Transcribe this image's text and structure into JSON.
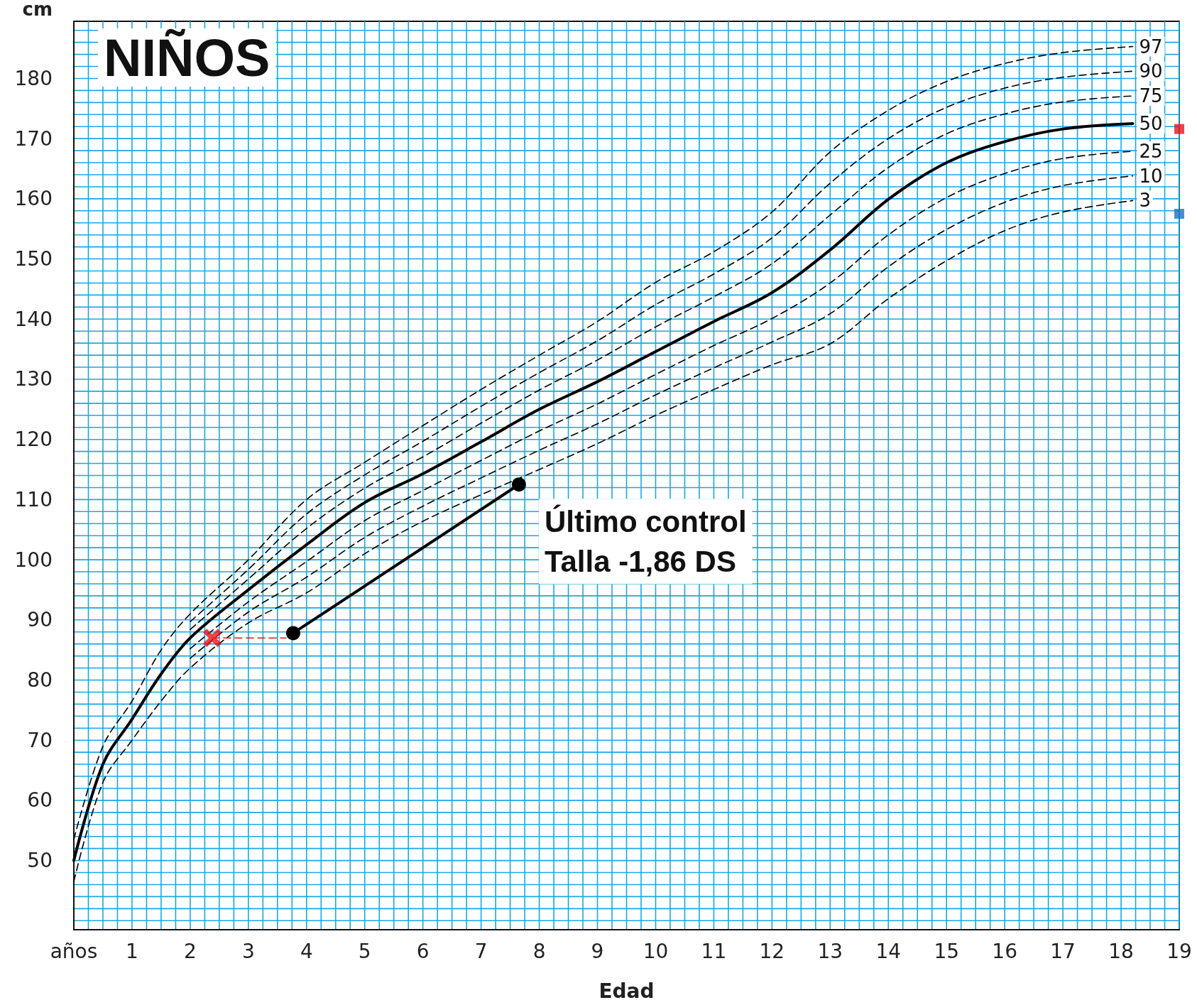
{
  "chart_data": {
    "type": "line",
    "title": "NIÑOS",
    "xlabel": "Edad",
    "ylabel": "cm",
    "x": [
      0,
      0.5,
      1,
      1.5,
      2,
      3,
      4,
      5,
      6,
      7,
      8,
      9,
      10,
      11,
      12,
      13,
      14,
      15,
      16,
      17,
      18.2
    ],
    "xlim": [
      0,
      19
    ],
    "ylim": [
      38.5,
      189.5
    ],
    "xticks": [
      {
        "value": 0,
        "label": "años"
      },
      1,
      2,
      3,
      4,
      5,
      6,
      7,
      8,
      9,
      10,
      11,
      12,
      13,
      14,
      15,
      16,
      17,
      18,
      19
    ],
    "yticks": [
      50,
      60,
      70,
      80,
      90,
      100,
      110,
      120,
      130,
      140,
      150,
      160,
      170,
      180
    ],
    "grid": true,
    "legend": false,
    "marker": "none",
    "line_style": "dashed",
    "series": [
      {
        "name": "97",
        "color": "#000000",
        "values": [
          53.5,
          69,
          76.5,
          85,
          91,
          100,
          110,
          116.2,
          122.3,
          128.3,
          134,
          139.6,
          146.1,
          151.2,
          157.8,
          167.8,
          174.7,
          179.5,
          182.5,
          184.3,
          185.3
        ]
      },
      {
        "name": "90",
        "color": "#000000",
        "values": [
          null,
          null,
          null,
          null,
          89.7,
          98.4,
          107.6,
          114.1,
          119.7,
          125.5,
          131.1,
          136.4,
          142.4,
          147.5,
          153.5,
          162.6,
          170,
          175.2,
          178.4,
          180.2,
          181.2
        ]
      },
      {
        "name": "75",
        "color": "#000000",
        "values": [
          null,
          null,
          null,
          null,
          88.4,
          96.8,
          105.2,
          111.9,
          117.1,
          122.7,
          128.2,
          133.2,
          138.7,
          143.7,
          149.2,
          157.3,
          165.2,
          170.8,
          174.1,
          176.1,
          177.1
        ]
      },
      {
        "name": "50",
        "color": "#000000",
        "line_style": "solid",
        "values": [
          50,
          66,
          73.5,
          81,
          87,
          95,
          102.5,
          109.5,
          114.3,
          119.6,
          125,
          129.6,
          134.6,
          139.6,
          144.4,
          151.5,
          159.9,
          166,
          169.5,
          171.6,
          172.5
        ]
      },
      {
        "name": "25",
        "color": "#000000",
        "values": [
          null,
          null,
          null,
          null,
          85.2,
          93,
          99.7,
          106.5,
          111.5,
          116.5,
          121.4,
          125.9,
          130.8,
          135.6,
          140.1,
          146,
          154,
          160.2,
          164.2,
          166.7,
          167.9
        ]
      },
      {
        "name": "10",
        "color": "#000000",
        "values": [
          null,
          null,
          null,
          null,
          83.6,
          91.3,
          97.1,
          103.7,
          108.9,
          113.6,
          118.2,
          122.6,
          127.4,
          131.9,
          136.2,
          140.9,
          148.7,
          154.9,
          159.4,
          162.2,
          163.8
        ]
      },
      {
        "name": "3",
        "color": "#000000",
        "values": [
          46.5,
          63,
          70,
          76.5,
          82,
          89.5,
          94.5,
          101,
          106.4,
          110.8,
          115,
          119.3,
          124,
          128.3,
          132.4,
          135.9,
          143.4,
          149.7,
          154.7,
          157.8,
          159.7
        ]
      },
      {
        "color": "#e8141c",
        "line_style": "dashed",
        "marker": "none",
        "x": [
          2.38,
          3.65
        ],
        "values": [
          87,
          87
        ]
      },
      {
        "type": "scatter",
        "color": "#e8141c",
        "marker": "cross",
        "x": [
          2.38
        ],
        "values": [
          87
        ]
      },
      {
        "color": "#000000",
        "line_style": "solid",
        "marker": "circle",
        "x": [
          3.77,
          7.65
        ],
        "values": [
          87.8,
          112.5
        ]
      },
      {
        "type": "scatter",
        "marker": "square",
        "colors": [
          "#e8141c",
          "#1a73c0"
        ],
        "x": [
          19,
          19
        ],
        "values": [
          171.6,
          157.5
        ]
      }
    ],
    "annotations": [
      {
        "text": "Último control\nTalla -1,86 DS",
        "x": 7.65,
        "y": 112.5
      }
    ]
  }
}
